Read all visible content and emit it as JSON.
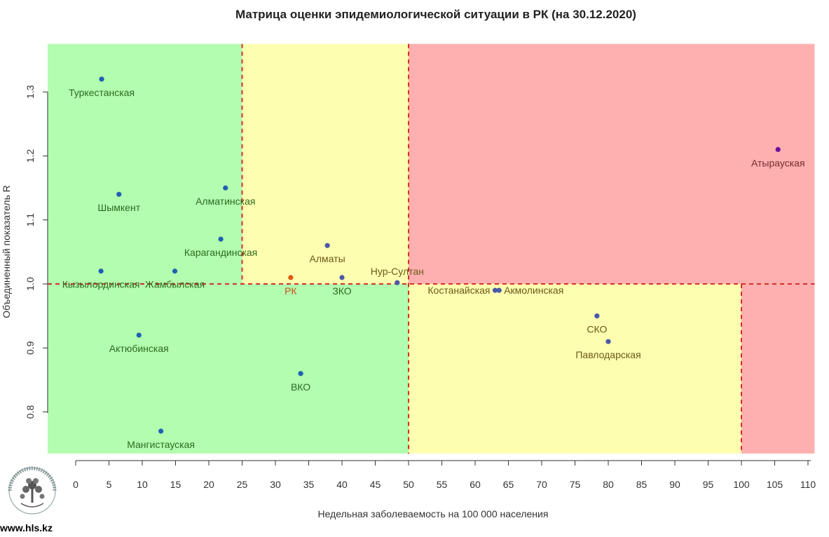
{
  "chart_data": {
    "type": "scatter",
    "title": "Матрица оценки эпидемиологической ситуации в РК (на 30.12.2020)",
    "xlabel": "Недельная заболеваемость на 100 000 населения",
    "ylabel": "Объединенный показатель R",
    "xlim": [
      -4.5,
      111
    ],
    "ylim": [
      0.735,
      1.375
    ],
    "x_ticks": [
      0,
      5,
      10,
      15,
      20,
      25,
      30,
      35,
      40,
      45,
      50,
      55,
      60,
      65,
      70,
      75,
      80,
      85,
      90,
      95,
      100,
      105,
      110
    ],
    "y_ticks": [
      0.8,
      0.9,
      1.0,
      1.1,
      1.2,
      1.3
    ],
    "y_tick_labels": [
      "0.8",
      "0.9",
      "1.0",
      "1.1",
      "1.2",
      "1.3"
    ],
    "grid": false,
    "zones": [
      {
        "x": [
          -4.5,
          50
        ],
        "y": [
          0.735,
          1.0
        ],
        "color": "#b3fdb0"
      },
      {
        "x": [
          -4.5,
          25
        ],
        "y": [
          1.0,
          1.375
        ],
        "color": "#b3fdb0"
      },
      {
        "x": [
          25,
          50
        ],
        "y": [
          1.0,
          1.375
        ],
        "color": "#fefeb0"
      },
      {
        "x": [
          50,
          100
        ],
        "y": [
          0.735,
          1.0
        ],
        "color": "#fefeb0"
      },
      {
        "x": [
          50,
          111
        ],
        "y": [
          1.0,
          1.375
        ],
        "color": "#feb0b0"
      },
      {
        "x": [
          100,
          111
        ],
        "y": [
          0.735,
          1.0
        ],
        "color": "#feb0b0"
      }
    ],
    "threshold_lines": [
      {
        "axis": "x",
        "value": 25,
        "from": 1.0,
        "to": 1.375
      },
      {
        "axis": "x",
        "value": 50,
        "from": 0.735,
        "to": 1.375
      },
      {
        "axis": "x",
        "value": 100,
        "from": 0.735,
        "to": 1.0
      },
      {
        "axis": "y",
        "value": 1.0,
        "from": -4.5,
        "to": 111
      }
    ],
    "threshold_color": "#d4302a",
    "points": [
      {
        "label": "Туркестанская",
        "x": 3.9,
        "y": 1.32,
        "color": "#2060b0",
        "label_color": "#2e6a1e",
        "label_dx": 0,
        "label_dy": 1
      },
      {
        "label": "Шымкент",
        "x": 6.5,
        "y": 1.14,
        "color": "#2060b0",
        "label_color": "#2e6a1e",
        "label_dx": 0,
        "label_dy": 1
      },
      {
        "label": "Алматинская",
        "x": 22.5,
        "y": 1.15,
        "color": "#2060b0",
        "label_color": "#2e6a1e",
        "label_dx": 0,
        "label_dy": 1
      },
      {
        "label": "Карагандинская",
        "x": 21.8,
        "y": 1.07,
        "color": "#2060b0",
        "label_color": "#2e6a1e",
        "label_dx": 0,
        "label_dy": 1
      },
      {
        "label": "Кызылординская",
        "x": 3.8,
        "y": 1.02,
        "color": "#2060b0",
        "label_color": "#2e6a1e",
        "label_dx": 0,
        "label_dy": 1
      },
      {
        "label": "Жамбылская",
        "x": 14.9,
        "y": 1.02,
        "color": "#2060b0",
        "label_color": "#2e6a1e",
        "label_dx": 0,
        "label_dy": 1
      },
      {
        "label": "Актюбинская",
        "x": 9.5,
        "y": 0.92,
        "color": "#2060b0",
        "label_color": "#2e6a1e",
        "label_dx": 0,
        "label_dy": 1
      },
      {
        "label": "ВКО",
        "x": 33.8,
        "y": 0.86,
        "color": "#2060b0",
        "label_color": "#2e6a1e",
        "label_dx": 0,
        "label_dy": 1
      },
      {
        "label": "Мангистауская",
        "x": 12.8,
        "y": 0.77,
        "color": "#2060b0",
        "label_color": "#2e6a1e",
        "label_dx": 0,
        "label_dy": 1
      },
      {
        "label": "РК",
        "x": 32.3,
        "y": 1.01,
        "color": "#e05a10",
        "label_color": "#c8501a",
        "label_dx": 0,
        "label_dy": 1
      },
      {
        "label": "Алматы",
        "x": 37.8,
        "y": 1.06,
        "color": "#4a58a8",
        "label_color": "#6a5a1a",
        "label_dx": 0,
        "label_dy": 1
      },
      {
        "label": "ЗКО",
        "x": 40.0,
        "y": 1.01,
        "color": "#4a58a8",
        "label_color": "#2e6a1e",
        "label_dx": 0,
        "label_dy": 1
      },
      {
        "label": "Нур-Султан",
        "x": 48.3,
        "y": 1.002,
        "color": "#4a58a8",
        "label_color": "#6a5a1a",
        "label_dx": 0,
        "label_dy": -1
      },
      {
        "label": "Костанайская",
        "x": 63.0,
        "y": 0.99,
        "color": "#4a58a8",
        "label_color": "#6a5a1a",
        "label_dx": -1,
        "label_dy": 0
      },
      {
        "label": "Акмолинская",
        "x": 63.6,
        "y": 0.99,
        "color": "#4a58a8",
        "label_color": "#6a5a1a",
        "label_dx": 1,
        "label_dy": 0
      },
      {
        "label": "СКО",
        "x": 78.3,
        "y": 0.95,
        "color": "#4a58a8",
        "label_color": "#6a5a1a",
        "label_dx": 0,
        "label_dy": 1
      },
      {
        "label": "Павлодарская",
        "x": 80.0,
        "y": 0.91,
        "color": "#4a58a8",
        "label_color": "#6a5a1a",
        "label_dx": 0,
        "label_dy": 1
      },
      {
        "label": "Атырауская",
        "x": 105.5,
        "y": 1.21,
        "color": "#6a10a0",
        "label_color": "#7a2a2a",
        "label_dx": 0,
        "label_dy": 1
      }
    ]
  },
  "footer": {
    "site": "www.hls.kz"
  },
  "logo": {
    "icon": "hls-tree-logo-icon",
    "ring_text": "КАЗАХСКИЙ НАЦИОНАЛЬНЫЙ МЕДИЦИНСКИЙ ИНСТИТУТ ЗДОРОВЬЯ"
  }
}
